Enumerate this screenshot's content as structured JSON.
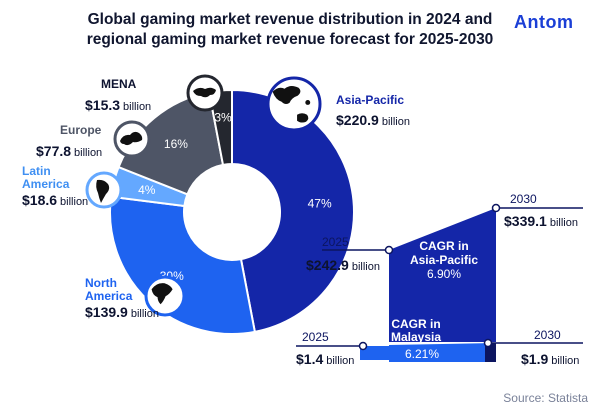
{
  "title_lines": [
    "Global gaming market revenue distribution in 2024 and",
    "regional gaming market revenue forecast for 2025-2030"
  ],
  "logo_text": "Antom",
  "source": "Source: Statista",
  "colors": {
    "asia_pacific": "#1426a8",
    "north_america": "#1e63f0",
    "latin_america": "#64a8ff",
    "europe": "#4e5566",
    "mena": "#24272f",
    "dark_navy": "#0c1560"
  },
  "chart_data": [
    {
      "type": "pie",
      "title": "",
      "slices": [
        {
          "name": "Asia-Pacific",
          "percent": 47,
          "percent_label": "47%",
          "value_label": "$220.9",
          "unit": "billion",
          "color": "#1426a8",
          "icon": "asia-pacific-map-icon"
        },
        {
          "name": "North America",
          "percent": 30,
          "percent_label": "30%",
          "value_label": "$139.9",
          "unit": "billion",
          "color": "#1e63f0",
          "icon": "north-america-map-icon"
        },
        {
          "name": "Latin America",
          "percent": 4,
          "percent_label": "4%",
          "value_label": "$18.6",
          "unit": "billion",
          "color": "#64a8ff",
          "icon": "latin-america-map-icon"
        },
        {
          "name": "Europe",
          "percent": 16,
          "percent_label": "16%",
          "value_label": "$77.8",
          "unit": "billion",
          "color": "#4e5566",
          "icon": "europe-map-icon"
        },
        {
          "name": "MENA",
          "percent": 3,
          "percent_label": "3%",
          "value_label": "$15.3",
          "unit": "billion",
          "color": "#24272f",
          "icon": "mena-map-icon"
        }
      ]
    },
    {
      "type": "area",
      "title": "",
      "series": [
        {
          "name": "Asia-Pacific",
          "points": [
            {
              "year": "2025",
              "value": 242.9,
              "value_label": "$242.9",
              "unit": "billion"
            },
            {
              "year": "2030",
              "value": 339.1,
              "value_label": "$339.1",
              "unit": "billion"
            }
          ],
          "cagr_lines": [
            "CAGR in",
            "Asia-Pacific",
            "6.90%"
          ]
        },
        {
          "name": "Malaysia",
          "points": [
            {
              "year": "2025",
              "value": 1.4,
              "value_label": "$1.4",
              "unit": "billion"
            },
            {
              "year": "2030",
              "value": 1.9,
              "value_label": "$1.9",
              "unit": "billion"
            }
          ],
          "cagr_lines": [
            "CAGR in",
            "Malaysia",
            "6.21%"
          ]
        }
      ]
    }
  ]
}
